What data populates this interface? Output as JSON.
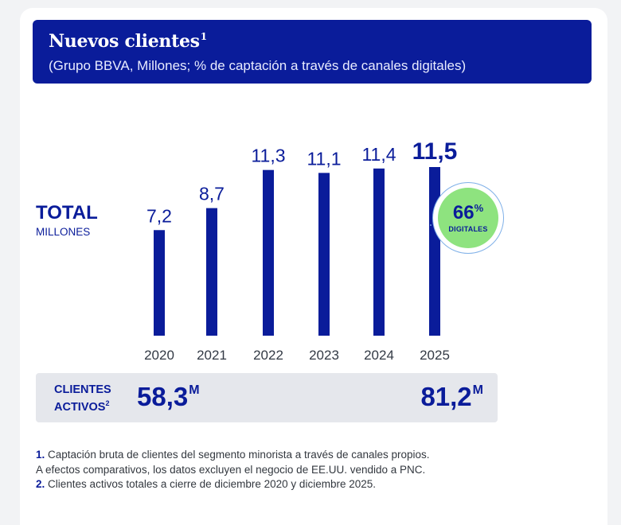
{
  "header": {
    "title": "Nuevos clientes",
    "title_sup": "1",
    "subtitle": "(Grupo BBVA, Millones; % de captación a través de canales digitales)"
  },
  "total": {
    "label": "TOTAL",
    "sublabel": "MILLONES"
  },
  "chart_data": {
    "type": "bar",
    "title": "Nuevos clientes",
    "ylabel": "Millones",
    "categories": [
      "2020",
      "2021",
      "2022",
      "2023",
      "2024",
      "2025"
    ],
    "values": [
      7.2,
      8.7,
      11.3,
      11.1,
      11.4,
      11.5
    ],
    "value_labels": [
      "7,2",
      "8,7",
      "11,3",
      "11,1",
      "11,4",
      "11,5"
    ],
    "highlight_index": 5,
    "ylim": [
      0,
      11.5
    ],
    "grid": false
  },
  "digital": {
    "value": "66",
    "unit": "%",
    "label": "DIGITALES"
  },
  "clients": {
    "label_line1": "CLIENTES",
    "label_line2": "ACTIVOS",
    "label_sup": "2",
    "value_2020": "58,3",
    "value_2025": "81,2",
    "unit": "M"
  },
  "footnotes": {
    "n1": "1.",
    "f1": "Captación bruta de clientes del segmento minorista a través de canales propios.",
    "f1b": "A efectos comparativos, los datos excluyen el negocio de EE.UU. vendido a PNC.",
    "n2": "2.",
    "f2": "Clientes activos totales a cierre de diciembre 2020 y diciembre 2025."
  },
  "colors": {
    "bar": "#0a1c9a",
    "header": "#0a1c9a",
    "badge": "#8ee37f"
  }
}
